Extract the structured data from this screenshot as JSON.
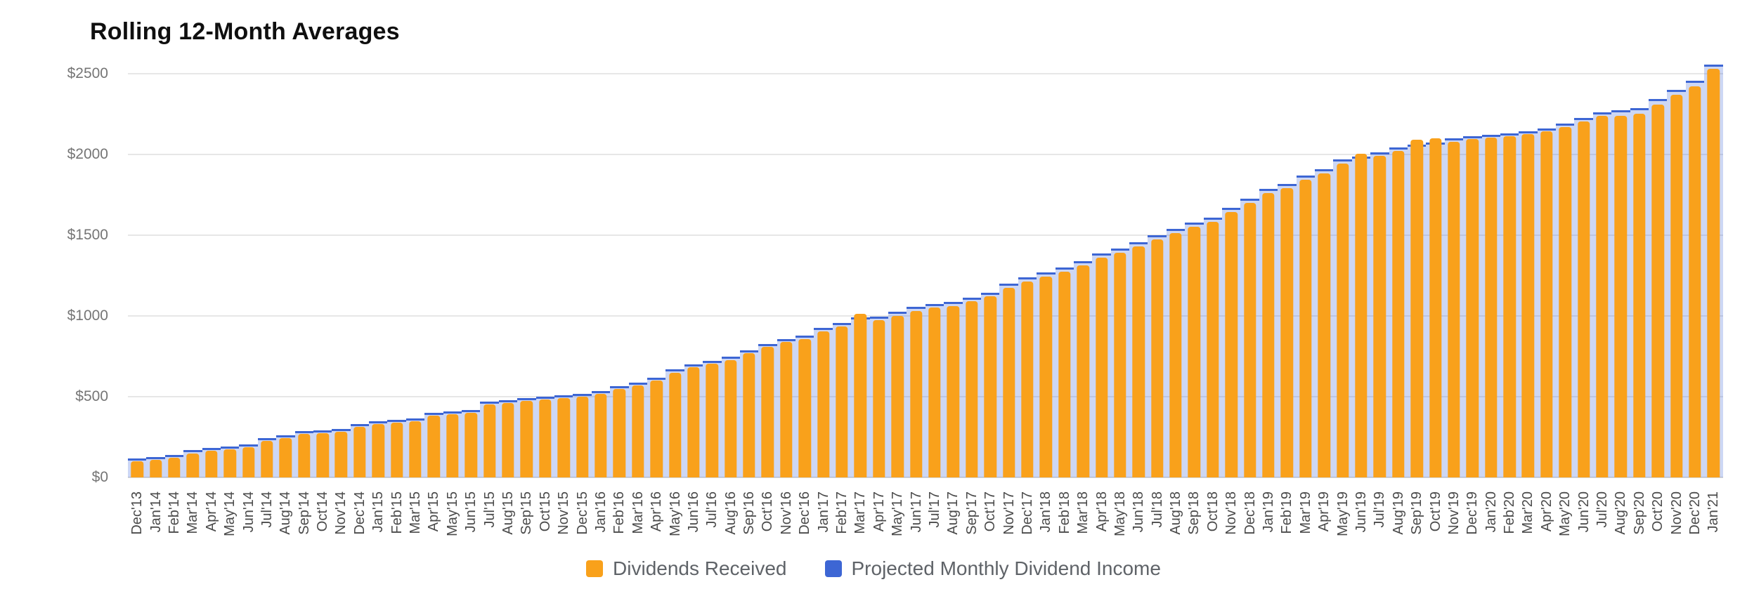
{
  "title": "Rolling 12-Month Averages",
  "colors": {
    "dividends_bar": "#F9A11B",
    "projected_line": "#3D66D4",
    "projected_fill": "#C7D7F4",
    "gridline": "#E7E7E7",
    "axis_text": "#757575",
    "x_axis_text": "#4a4a4a",
    "title_text": "#0f0f0f",
    "background": "#ffffff"
  },
  "legend": {
    "items": [
      {
        "label": "Dividends Received",
        "color": "#F9A11B",
        "icon": "dividends-legend-swatch"
      },
      {
        "label": "Projected Monthly Dividend Income",
        "color": "#3D66D4",
        "icon": "projected-legend-swatch"
      }
    ]
  },
  "chart_data": {
    "type": "bar",
    "title": "Rolling 12-Month Averages",
    "categories": [
      "Dec'13",
      "Jan'14",
      "Feb'14",
      "Mar'14",
      "Apr'14",
      "May'14",
      "Jun'14",
      "Jul'14",
      "Aug'14",
      "Sep'14",
      "Oct'14",
      "Nov'14",
      "Dec'14",
      "Jan'15",
      "Feb'15",
      "Mar'15",
      "Apr'15",
      "May'15",
      "Jun'15",
      "Jul'15",
      "Aug'15",
      "Sep'15",
      "Oct'15",
      "Nov'15",
      "Dec'15",
      "Jan'16",
      "Feb'16",
      "Mar'16",
      "Apr'16",
      "May'16",
      "Jun'16",
      "Jul'16",
      "Aug'16",
      "Sep'16",
      "Oct'16",
      "Nov'16",
      "Dec'16",
      "Jan'17",
      "Feb'17",
      "Mar'17",
      "Apr'17",
      "May'17",
      "Jun'17",
      "Jul'17",
      "Aug'17",
      "Sep'17",
      "Oct'17",
      "Nov'17",
      "Dec'17",
      "Jan'18",
      "Feb'18",
      "Mar'18",
      "Apr'18",
      "May'18",
      "Jun'18",
      "Jul'18",
      "Aug'18",
      "Sep'18",
      "Oct'18",
      "Nov'18",
      "Dec'18",
      "Jan'19",
      "Feb'19",
      "Mar'19",
      "Apr'19",
      "May'19",
      "Jun'19",
      "Jul'19",
      "Aug'19",
      "Sep'19",
      "Oct'19",
      "Nov'19",
      "Dec'19",
      "Jan'20",
      "Feb'20",
      "Mar'20",
      "Apr'20",
      "May'20",
      "Jun'20",
      "Jul'20",
      "Aug'20",
      "Sep'20",
      "Oct'20",
      "Nov'20",
      "Dec'20",
      "Jan'21"
    ],
    "series": [
      {
        "name": "Dividends Received",
        "type": "bar",
        "color": "#F9A11B",
        "values": [
          100,
          110,
          122,
          150,
          165,
          172,
          188,
          225,
          245,
          268,
          275,
          283,
          315,
          332,
          340,
          348,
          383,
          390,
          398,
          452,
          462,
          472,
          482,
          490,
          498,
          518,
          548,
          568,
          598,
          648,
          682,
          703,
          728,
          768,
          808,
          838,
          858,
          903,
          933,
          1012,
          972,
          1002,
          1032,
          1052,
          1062,
          1092,
          1122,
          1172,
          1212,
          1242,
          1272,
          1312,
          1362,
          1392,
          1432,
          1472,
          1512,
          1552,
          1582,
          1642,
          1702,
          1762,
          1792,
          1842,
          1882,
          1942,
          2005,
          1990,
          2020,
          2090,
          2100,
          2080,
          2095,
          2105,
          2115,
          2125,
          2145,
          2170,
          2205,
          2238,
          2240,
          2252,
          2310,
          2368,
          2420,
          2530
        ]
      },
      {
        "name": "Projected Monthly Dividend Income",
        "type": "step-area-line",
        "line_color": "#3D66D4",
        "fill_color": "#C7D7F4",
        "values": [
          118,
          128,
          140,
          168,
          182,
          190,
          206,
          243,
          262,
          285,
          292,
          300,
          332,
          350,
          358,
          366,
          400,
          408,
          416,
          470,
          480,
          490,
          500,
          508,
          516,
          536,
          566,
          586,
          618,
          668,
          702,
          723,
          748,
          788,
          828,
          858,
          878,
          925,
          955,
          990,
          995,
          1025,
          1055,
          1075,
          1085,
          1115,
          1145,
          1198,
          1238,
          1268,
          1298,
          1338,
          1388,
          1418,
          1458,
          1498,
          1538,
          1578,
          1608,
          1668,
          1728,
          1788,
          1818,
          1868,
          1908,
          1968,
          1988,
          2012,
          2042,
          2062,
          2075,
          2098,
          2112,
          2122,
          2132,
          2142,
          2162,
          2190,
          2228,
          2262,
          2272,
          2285,
          2345,
          2400,
          2455,
          2555
        ]
      }
    ],
    "xlabel": "",
    "ylabel": "",
    "ylim": [
      0,
      2600
    ],
    "yticks": [
      0,
      500,
      1000,
      1500,
      2000,
      2500
    ],
    "ytick_labels": [
      "$0",
      "$500",
      "$1000",
      "$1500",
      "$2000",
      "$2500"
    ],
    "grid": true,
    "legend_position": "bottom",
    "x_axis_label_rotation": 90
  }
}
